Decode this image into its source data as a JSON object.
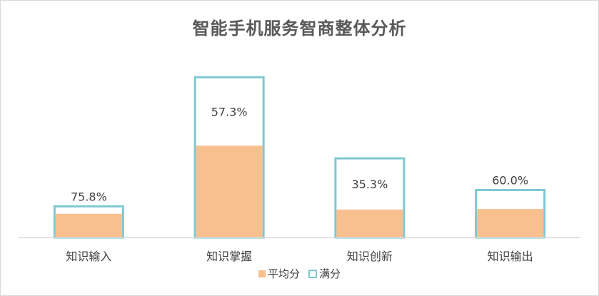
{
  "chart_data": {
    "type": "bar",
    "title": "智能手机服务智商整体分析",
    "categories": [
      "知识输入",
      "知识掌握",
      "知识创新",
      "知识输出"
    ],
    "series": [
      {
        "name": "平均分",
        "values": [
          9.5,
          36.8,
          11.2,
          11.4
        ],
        "color": "#f8c08f"
      },
      {
        "name": "满分",
        "values": [
          12.5,
          64.2,
          31.7,
          19.0
        ],
        "color": "#7fc8d2"
      }
    ],
    "data_labels": [
      "75.8%",
      "57.3%",
      "35.3%",
      "60.0%"
    ],
    "ylim": [
      0,
      66
    ],
    "xlabel": "",
    "ylabel": "",
    "grid": false,
    "legend_position": "bottom"
  }
}
